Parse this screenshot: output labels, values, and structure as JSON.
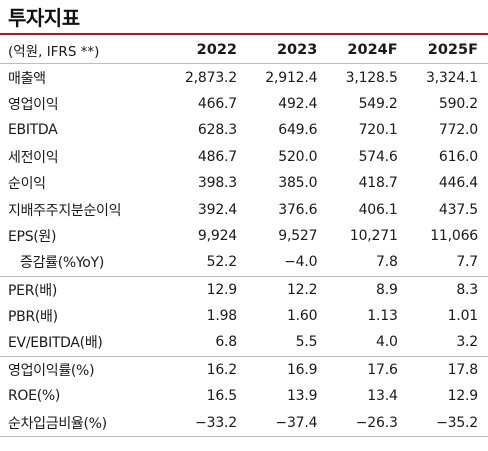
{
  "title": "투자지표",
  "header": {
    "label": "(억원, IFRS **)",
    "years": [
      "2022",
      "2023",
      "2024F",
      "2025F"
    ]
  },
  "rows": [
    {
      "label": "매출액",
      "values": [
        "2,873.2",
        "2,912.4",
        "3,128.5",
        "3,324.1"
      ]
    },
    {
      "label": "영업이익",
      "values": [
        "466.7",
        "492.4",
        "549.2",
        "590.2"
      ]
    },
    {
      "label": "EBITDA",
      "values": [
        "628.3",
        "649.6",
        "720.1",
        "772.0"
      ]
    },
    {
      "label": "세전이익",
      "values": [
        "486.7",
        "520.0",
        "574.6",
        "616.0"
      ]
    },
    {
      "label": "순이익",
      "values": [
        "398.3",
        "385.0",
        "418.7",
        "446.4"
      ]
    },
    {
      "label": "지배주주지분순이익",
      "values": [
        "392.4",
        "376.6",
        "406.1",
        "437.5"
      ]
    },
    {
      "label": "EPS(원)",
      "values": [
        "9,924",
        "9,527",
        "10,271",
        "11,066"
      ]
    },
    {
      "label": "증감률(%YoY)",
      "values": [
        "52.2",
        "−4.0",
        "7.8",
        "7.7"
      ]
    },
    {
      "label": "PER(배)",
      "values": [
        "12.9",
        "12.2",
        "8.9",
        "8.3"
      ]
    },
    {
      "label": "PBR(배)",
      "values": [
        "1.98",
        "1.60",
        "1.13",
        "1.01"
      ]
    },
    {
      "label": "EV/EBITDA(배)",
      "values": [
        "6.8",
        "5.5",
        "4.0",
        "3.2"
      ]
    },
    {
      "label": "영업이익률(%)",
      "values": [
        "16.2",
        "16.9",
        "17.6",
        "17.8"
      ]
    },
    {
      "label": "ROE(%)",
      "values": [
        "16.5",
        "13.9",
        "13.4",
        "12.9"
      ]
    },
    {
      "label": "순차입금비율(%)",
      "values": [
        "−33.2",
        "−37.4",
        "−26.3",
        "−35.2"
      ]
    }
  ],
  "colors": {
    "accent_rule": "#c00f17",
    "divider": "#bdbdbd",
    "text": "#1a1a1a"
  }
}
